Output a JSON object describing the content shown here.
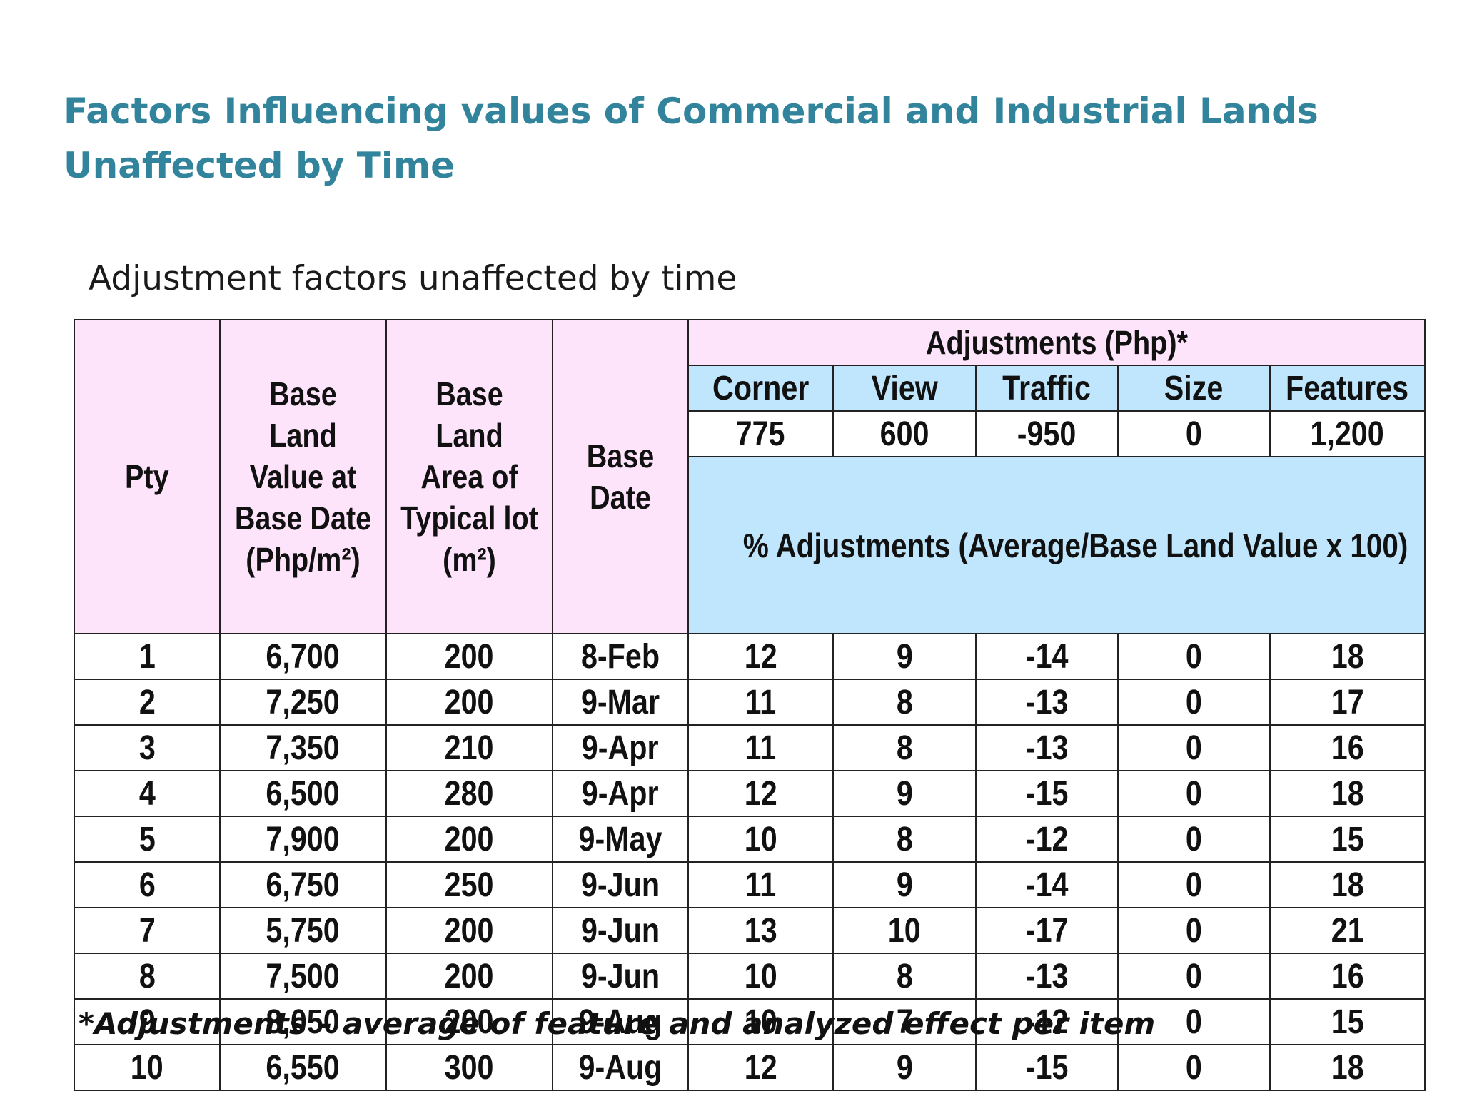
{
  "title": {
    "line1": "Factors Influencing values of Commercial and Industrial Lands",
    "line2": "Unaffected by Time"
  },
  "subtitle": "Adjustment factors unaffected by time",
  "table": {
    "headers": {
      "pty": "Pty",
      "base_land_value": [
        "Base Land",
        "Value at",
        "Base Date",
        "(Php/m²)"
      ],
      "base_land_area": [
        "Base Land",
        "Area of",
        "Typical lot",
        "(m²)"
      ],
      "base_date": [
        "Base",
        "Date"
      ],
      "adjustments": "Adjustments (Php)*",
      "factors": [
        "Corner",
        "View",
        "Traffic",
        "Size",
        "Features"
      ],
      "factor_values": [
        "775",
        "600",
        "-950",
        "0",
        "1,200"
      ],
      "pct_adjustments": "% Adjustments (Average/Base Land Value x 100)"
    },
    "rows": [
      [
        "1",
        "6,700",
        "200",
        "8-Feb",
        "12",
        "9",
        "-14",
        "0",
        "18"
      ],
      [
        "2",
        "7,250",
        "200",
        "9-Mar",
        "11",
        "8",
        "-13",
        "0",
        "17"
      ],
      [
        "3",
        "7,350",
        "210",
        "9-Apr",
        "11",
        "8",
        "-13",
        "0",
        "16"
      ],
      [
        "4",
        "6,500",
        "280",
        "9-Apr",
        "12",
        "9",
        "-15",
        "0",
        "18"
      ],
      [
        "5",
        "7,900",
        "200",
        "9-May",
        "10",
        "8",
        "-12",
        "0",
        "15"
      ],
      [
        "6",
        "6,750",
        "250",
        "9-Jun",
        "11",
        "9",
        "-14",
        "0",
        "18"
      ],
      [
        "7",
        "5,750",
        "200",
        "9-Jun",
        "13",
        "10",
        "-17",
        "0",
        "21"
      ],
      [
        "8",
        "7,500",
        "200",
        "9-Jun",
        "10",
        "8",
        "-13",
        "0",
        "16"
      ],
      [
        "9",
        "8,050",
        "200",
        "9-Aug",
        "10",
        "7",
        "-12",
        "0",
        "15"
      ],
      [
        "10",
        "6,550",
        "300",
        "9-Aug",
        "12",
        "9",
        "-15",
        "0",
        "18"
      ]
    ]
  },
  "footnote": "*Adjustments – average of feature and analyzed effect per item"
}
